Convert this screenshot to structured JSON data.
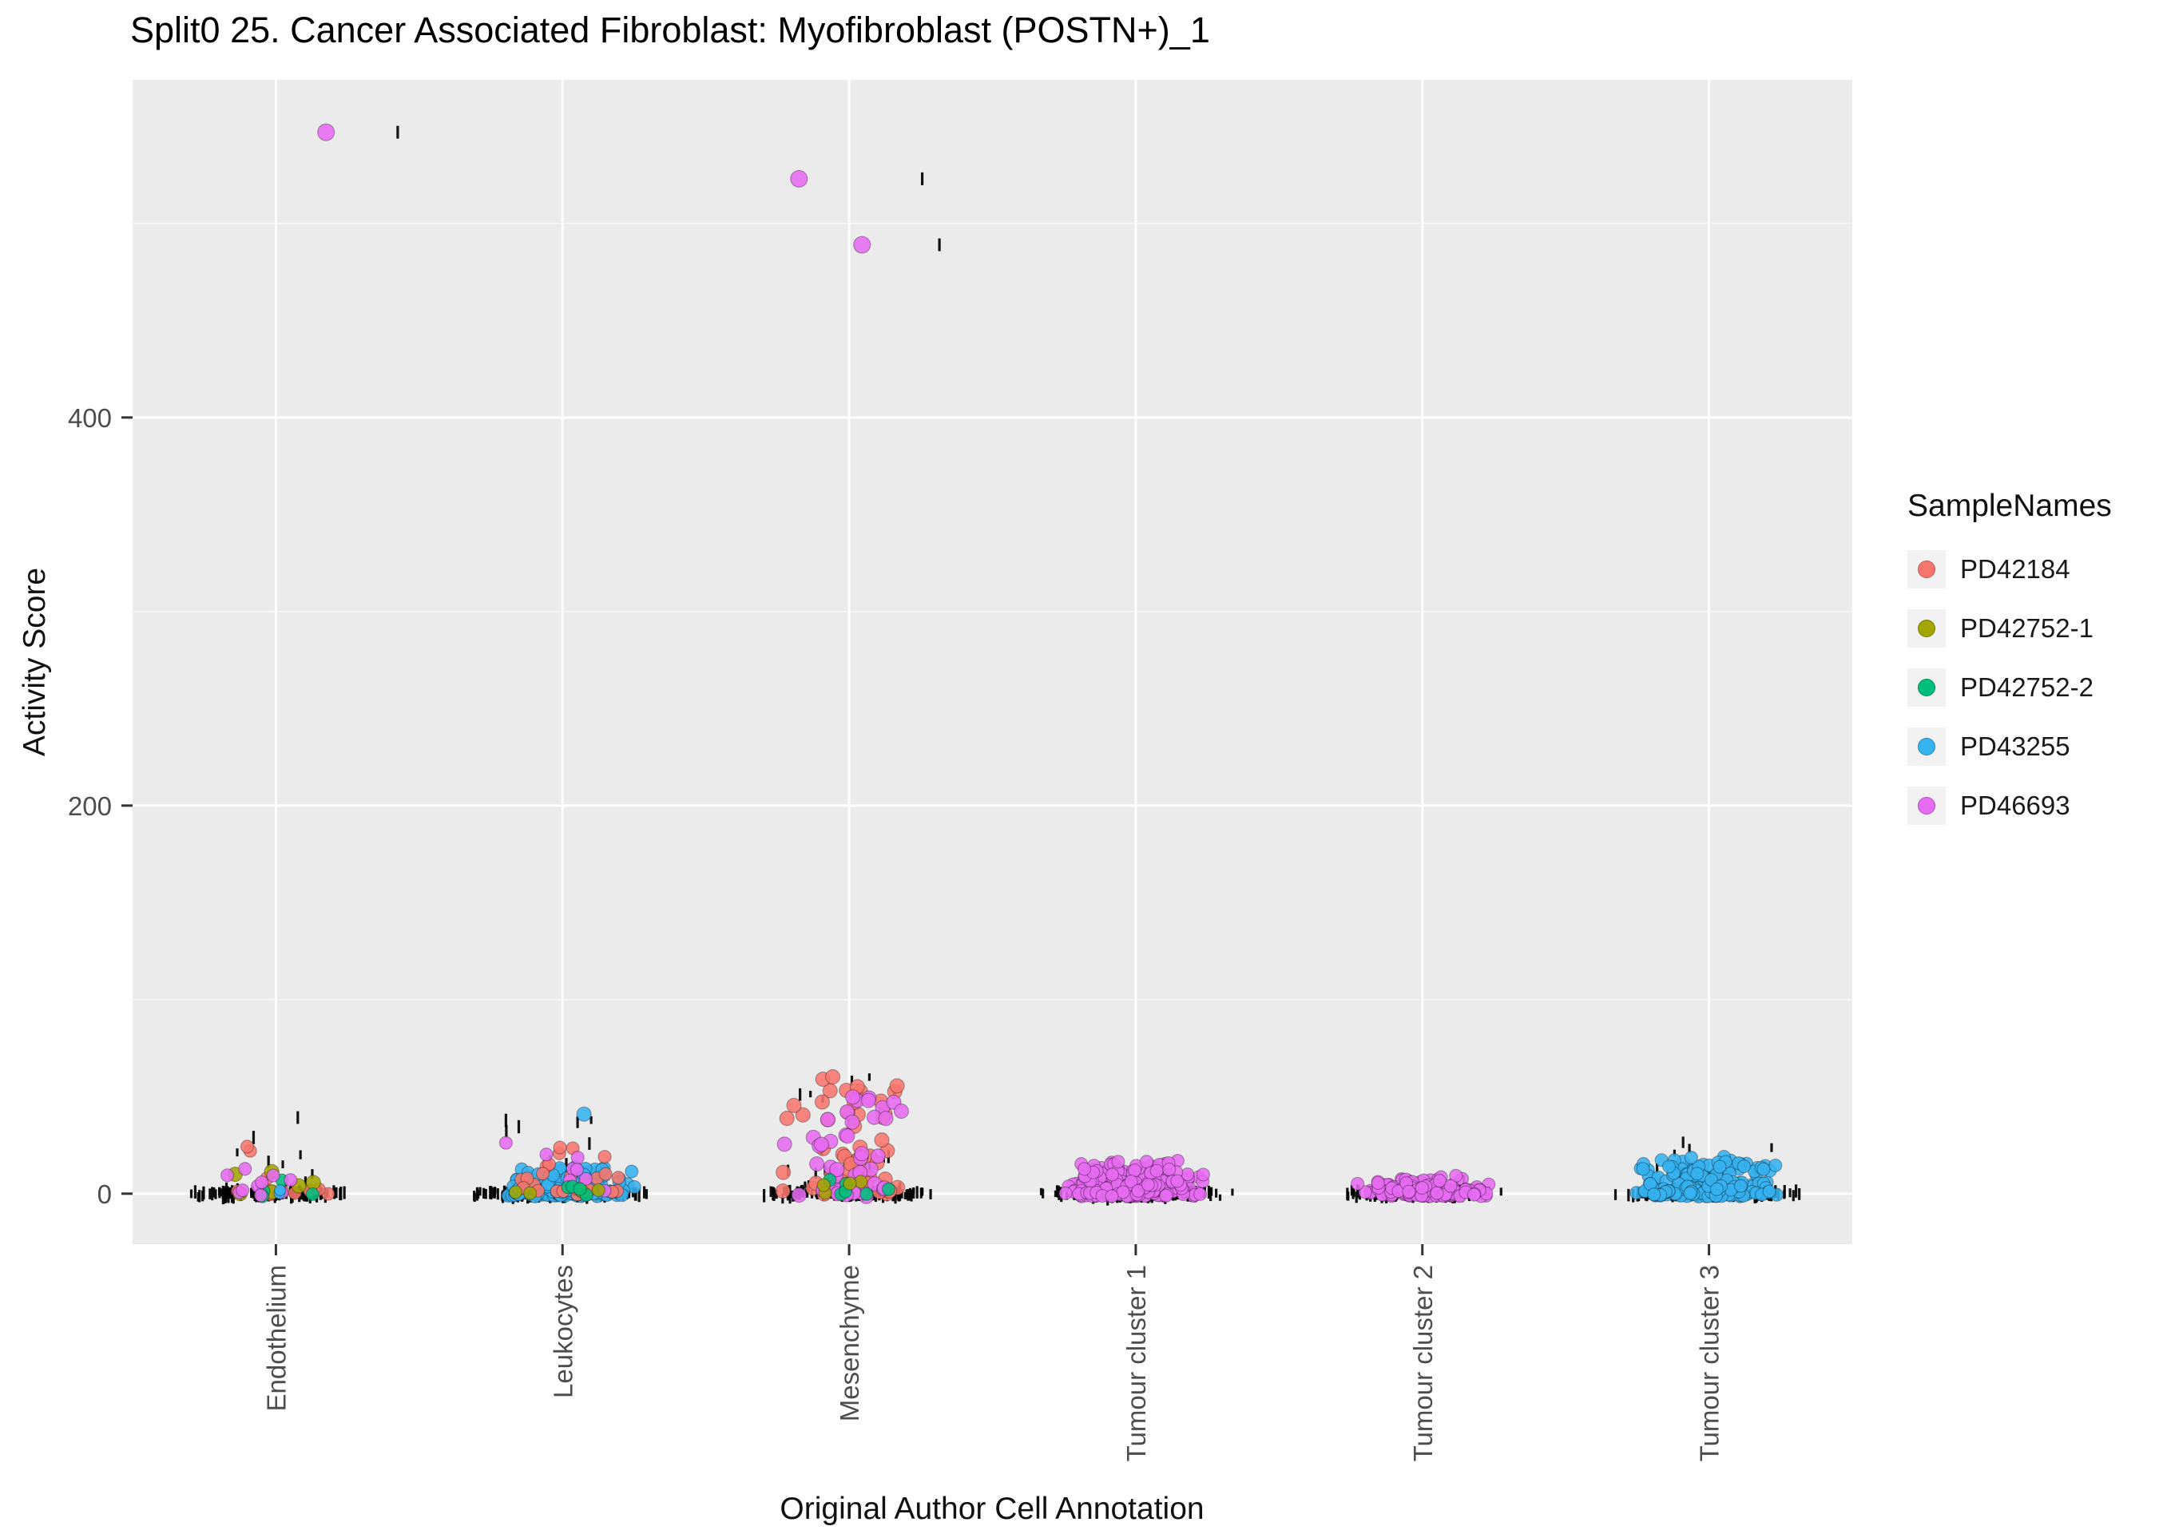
{
  "title": "Split0 25. Cancer Associated Fibroblast: Myofibroblast (POSTN+)_1",
  "legend": {
    "title": "SampleNames",
    "items": [
      {
        "label": "PD42184",
        "color": "#F8766D"
      },
      {
        "label": "PD42752-1",
        "color": "#A3A500"
      },
      {
        "label": "PD42752-2",
        "color": "#00BF7D"
      },
      {
        "label": "PD43255",
        "color": "#35B2F0"
      },
      {
        "label": "PD46693",
        "color": "#E76BF3"
      }
    ]
  },
  "chart_data": {
    "type": "scatter",
    "subtype": "jitter-strip",
    "xlabel": "Original Author Cell Annotation",
    "ylabel": "Activity Score",
    "categories": [
      "Endothelium",
      "Leukocytes",
      "Mesenchyme",
      "Tumour cluster 1",
      "Tumour cluster 2",
      "Tumour cluster 3"
    ],
    "y_ticks": [
      0,
      200,
      400
    ],
    "y_minor_ticks": [
      100,
      300,
      500
    ],
    "y_domain": [
      -26,
      574
    ],
    "grid": "white-on-grey",
    "legend_position": "right",
    "samples": {
      "PD42184": "#F8766D",
      "PD42752-1": "#A3A500",
      "PD42752-2": "#00BF7D",
      "PD43255": "#35B2F0",
      "PD46693": "#E76BF3",
      "black": "#000000"
    },
    "clusters": [
      {
        "cat": 0,
        "sample": "black",
        "kind": "band",
        "n": 130,
        "xs": 0.68
      },
      {
        "cat": 0,
        "sample": "black",
        "kind": "tail",
        "n": 12,
        "ymax": 42,
        "p": 2.0,
        "xs": 0.55
      },
      {
        "cat": 1,
        "sample": "black",
        "kind": "band",
        "n": 210,
        "xs": 0.7
      },
      {
        "cat": 1,
        "sample": "black",
        "kind": "tail",
        "n": 16,
        "ymax": 36,
        "p": 2.1,
        "xs": 0.6
      },
      {
        "cat": 2,
        "sample": "black",
        "kind": "band",
        "n": 160,
        "xs": 0.66
      },
      {
        "cat": 2,
        "sample": "black",
        "kind": "tail",
        "n": 26,
        "ymax": 64,
        "p": 1.8,
        "xs": 0.6
      },
      {
        "cat": 3,
        "sample": "black",
        "kind": "band",
        "n": 200,
        "xs": 0.7
      },
      {
        "cat": 3,
        "sample": "black",
        "kind": "tail",
        "n": 10,
        "ymax": 14,
        "p": 2.0,
        "xs": 0.55
      },
      {
        "cat": 4,
        "sample": "black",
        "kind": "band",
        "n": 150,
        "xs": 0.62
      },
      {
        "cat": 4,
        "sample": "black",
        "kind": "tail",
        "n": 6,
        "ymax": 8,
        "p": 2.0,
        "xs": 0.5
      },
      {
        "cat": 5,
        "sample": "black",
        "kind": "band",
        "n": 180,
        "xs": 0.66
      },
      {
        "cat": 5,
        "sample": "black",
        "kind": "tail",
        "n": 14,
        "ymax": 26,
        "p": 2.0,
        "xs": 0.6
      },
      {
        "cat": 0,
        "sample": "PD42184",
        "kind": "dot",
        "n": 14,
        "ymax": 26,
        "p": 3.0,
        "xs": 0.5,
        "r": 8
      },
      {
        "cat": 0,
        "sample": "PD42752-1",
        "kind": "dot",
        "n": 6,
        "ymax": 36,
        "p": 2.0,
        "xs": 0.45,
        "r": 9
      },
      {
        "cat": 0,
        "sample": "PD42752-2",
        "kind": "dot",
        "n": 4,
        "ymax": 9,
        "p": 2.0,
        "xs": 0.4,
        "r": 8
      },
      {
        "cat": 0,
        "sample": "PD46693",
        "kind": "dot",
        "n": 10,
        "ymax": 13,
        "p": 2.4,
        "xs": 0.55,
        "r": 8
      },
      {
        "cat": 0,
        "sample": "PD43255",
        "kind": "dot",
        "n": 2,
        "ymax": 4,
        "p": 1.5,
        "xs": 0.3,
        "r": 7
      },
      {
        "cat": 1,
        "sample": "PD43255",
        "kind": "dot",
        "n": 170,
        "ymax": 14,
        "p": 3.4,
        "xs": 0.52,
        "r": 8
      },
      {
        "cat": 1,
        "sample": "PD42184",
        "kind": "dot",
        "n": 26,
        "ymax": 28,
        "p": 2.6,
        "xs": 0.5,
        "r": 8
      },
      {
        "cat": 1,
        "sample": "PD46693",
        "kind": "dot",
        "n": 8,
        "ymax": 29,
        "p": 2.0,
        "xs": 0.5,
        "r": 8
      },
      {
        "cat": 1,
        "sample": "PD42752-1",
        "kind": "dot",
        "n": 4,
        "ymax": 8,
        "p": 2.0,
        "xs": 0.4,
        "r": 8
      },
      {
        "cat": 1,
        "sample": "PD42752-2",
        "kind": "dot",
        "n": 4,
        "ymax": 8,
        "p": 2.0,
        "xs": 0.4,
        "r": 8
      },
      {
        "cat": 2,
        "sample": "PD42184",
        "kind": "dot",
        "n": 55,
        "ymax": 60,
        "p": 2.1,
        "xs": 0.5,
        "r": 9
      },
      {
        "cat": 2,
        "sample": "PD46693",
        "kind": "dot",
        "n": 45,
        "ymax": 52,
        "p": 2.2,
        "xs": 0.5,
        "r": 9
      },
      {
        "cat": 2,
        "sample": "PD42752-2",
        "kind": "dot",
        "n": 6,
        "ymax": 10,
        "p": 2.0,
        "xs": 0.4,
        "r": 8
      },
      {
        "cat": 2,
        "sample": "PD42752-1",
        "kind": "dot",
        "n": 4,
        "ymax": 8,
        "p": 2.0,
        "xs": 0.4,
        "r": 8
      },
      {
        "cat": 3,
        "sample": "PD46693",
        "kind": "dot",
        "n": 260,
        "ymax": 16,
        "p": 3.2,
        "xs": 0.5,
        "r": 8
      },
      {
        "cat": 4,
        "sample": "PD46693",
        "kind": "dot",
        "n": 150,
        "ymax": 8,
        "p": 3.0,
        "xs": 0.5,
        "r": 8
      },
      {
        "cat": 5,
        "sample": "PD43255",
        "kind": "dot",
        "n": 240,
        "ymax": 18,
        "p": 3.0,
        "xs": 0.55,
        "r": 8
      }
    ],
    "outliers": [
      {
        "cat": 0,
        "sample": "PD46693",
        "y": 547,
        "x": 0.35,
        "r": 10.5
      },
      {
        "cat": 0,
        "sample": "black",
        "y": 547,
        "x": 0.85
      },
      {
        "cat": 2,
        "sample": "PD46693",
        "y": 523,
        "x": -0.35,
        "r": 10.5
      },
      {
        "cat": 2,
        "sample": "black",
        "y": 523,
        "x": 0.51
      },
      {
        "cat": 2,
        "sample": "PD46693",
        "y": 489,
        "x": 0.09,
        "r": 10.5
      },
      {
        "cat": 2,
        "sample": "black",
        "y": 489,
        "x": 0.63
      },
      {
        "cat": 1,
        "sample": "PD43255",
        "y": 41,
        "x": 0.15,
        "r": 9
      }
    ]
  }
}
